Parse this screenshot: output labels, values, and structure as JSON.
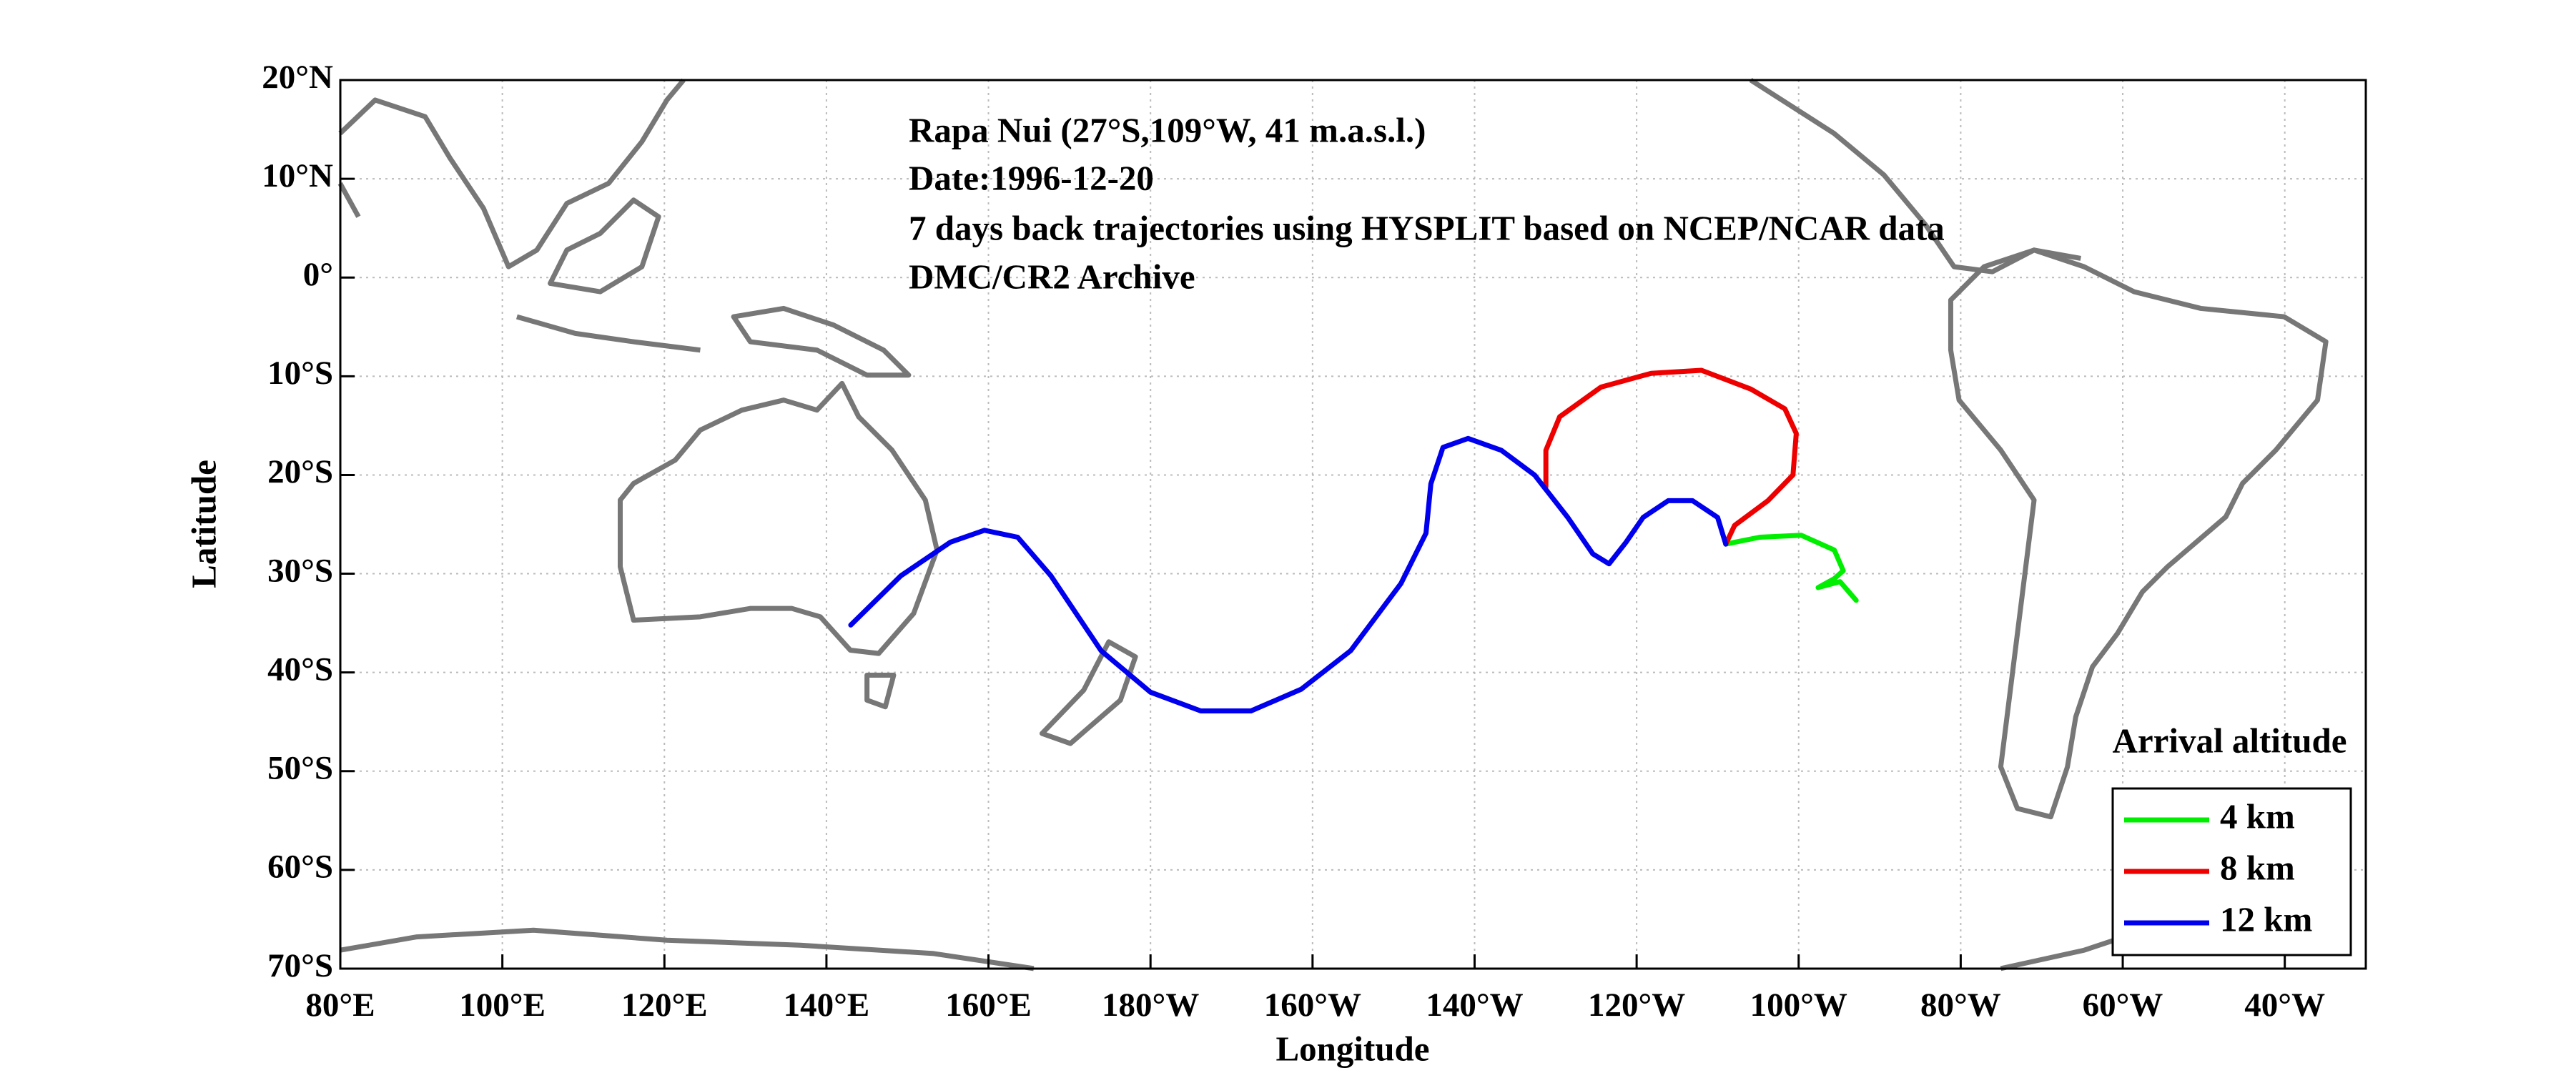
{
  "chart_data": {
    "type": "line",
    "annotations": [
      "Rapa Nui (27°S,109°W, 41 m.a.s.l.)",
      "Date:1996-12-20",
      "7 days back trajectories using HYSPLIT based on NCEP/NCAR data",
      "DMC/CR2 Archive"
    ],
    "xlabel": "Longitude",
    "ylabel": "Latitude",
    "legend_title": "Arrival altitude",
    "legend": "lower right",
    "grid": true,
    "xlim": [
      80,
      330
    ],
    "ylim": [
      -70,
      20
    ],
    "xticks": [
      {
        "value": 80,
        "label": "80°E"
      },
      {
        "value": 100,
        "label": "100°E"
      },
      {
        "value": 120,
        "label": "120°E"
      },
      {
        "value": 140,
        "label": "140°E"
      },
      {
        "value": 160,
        "label": "160°E"
      },
      {
        "value": 180,
        "label": "180°W"
      },
      {
        "value": 200,
        "label": "160°W"
      },
      {
        "value": 220,
        "label": "140°W"
      },
      {
        "value": 240,
        "label": "120°W"
      },
      {
        "value": 260,
        "label": "100°W"
      },
      {
        "value": 280,
        "label": "80°W"
      },
      {
        "value": 300,
        "label": "60°W"
      },
      {
        "value": 320,
        "label": "40°W"
      }
    ],
    "yticks": [
      {
        "value": 20,
        "label": "20°N"
      },
      {
        "value": 10,
        "label": "10°N"
      },
      {
        "value": 0,
        "label": "0°"
      },
      {
        "value": -10,
        "label": "10°S"
      },
      {
        "value": -20,
        "label": "20°S"
      },
      {
        "value": -30,
        "label": "30°S"
      },
      {
        "value": -40,
        "label": "40°S"
      },
      {
        "value": -50,
        "label": "50°S"
      },
      {
        "value": -60,
        "label": "60°S"
      },
      {
        "value": -70,
        "label": "70°S"
      }
    ],
    "series": [
      {
        "name": "4 km",
        "color": "#00ee00",
        "x": [
          251,
          255.2,
          260.3,
          264.4,
          265.5,
          264.4,
          262.4,
          265.1,
          267.1
        ],
        "values": [
          -27,
          -26.3,
          -26.1,
          -27.6,
          -29.7,
          -30.5,
          -31.4,
          -30.8,
          -32.7
        ]
      },
      {
        "name": "8 km",
        "color": "#ee0000",
        "x": [
          251,
          252.1,
          256.2,
          259.3,
          259.7,
          258.3,
          254.1,
          248.0,
          241.8,
          235.6,
          230.5,
          228.8,
          228.8
        ],
        "values": [
          -27,
          -25.1,
          -22.6,
          -20.0,
          -15.8,
          -13.3,
          -11.3,
          -9.4,
          -9.7,
          -11.1,
          -14.1,
          -17.5,
          -21.2
        ]
      },
      {
        "name": "12 km",
        "color": "#0000ee",
        "x": [
          251,
          250.0,
          246.9,
          243.9,
          240.8,
          238.7,
          236.6,
          234.6,
          231.5,
          227.4,
          223.3,
          219.2,
          216.1,
          214.6,
          214.0,
          210.9,
          204.7,
          198.6,
          192.4,
          186.2,
          180.0,
          173.9,
          167.7,
          163.6,
          159.5,
          155.3,
          149.2,
          143.0
        ],
        "values": [
          -27,
          -24.3,
          -22.6,
          -22.6,
          -24.3,
          -26.8,
          -29.0,
          -28.0,
          -24.3,
          -20.0,
          -17.5,
          -16.3,
          -17.2,
          -20.9,
          -25.9,
          -31.0,
          -37.8,
          -41.7,
          -43.9,
          -43.9,
          -42.0,
          -37.8,
          -30.2,
          -26.3,
          -25.6,
          -26.8,
          -30.2,
          -35.2
        ]
      }
    ]
  }
}
